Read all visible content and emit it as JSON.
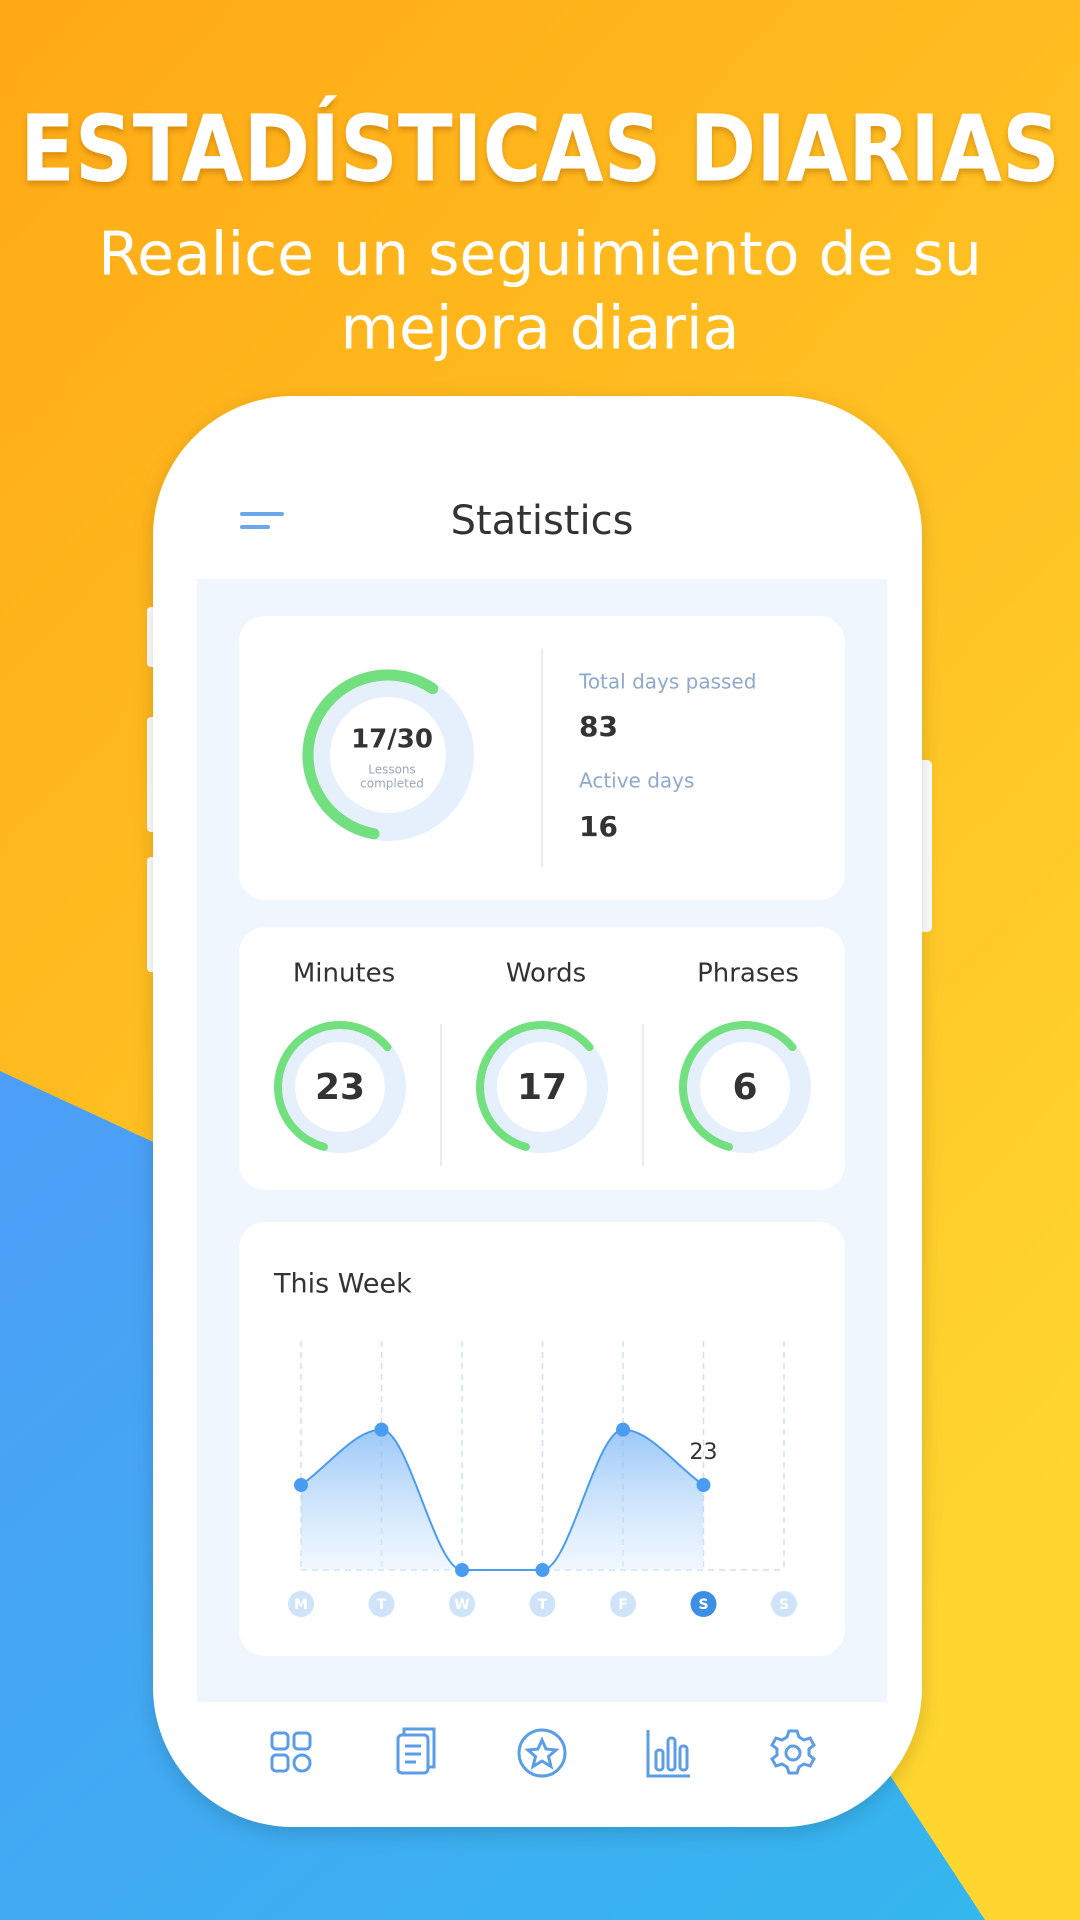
{
  "header": {
    "title": "ESTADÍSTICAS DIARIAS",
    "subtitle": [
      "Realice un seguimiento de su",
      "mejora diaria"
    ]
  },
  "app": {
    "title": "Statistics"
  },
  "lessons": {
    "value": 17,
    "total": 30,
    "value_label": "17/30",
    "caption": [
      "Lessons",
      "completed"
    ]
  },
  "summary": [
    {
      "label": "Total days passed",
      "value": 83
    },
    {
      "label": "Active days",
      "value": 16
    }
  ],
  "counters": [
    {
      "label": "Minutes",
      "value": 23
    },
    {
      "label": "Words",
      "value": 17
    },
    {
      "label": "Phrases",
      "value": 6
    }
  ],
  "chart_data": {
    "type": "area",
    "title": "This Week",
    "categories": [
      "M",
      "T",
      "W",
      "T",
      "F",
      "S",
      "S"
    ],
    "values": [
      23,
      38,
      0,
      0,
      38,
      23,
      null
    ],
    "value_labels": [
      null,
      null,
      null,
      null,
      null,
      "23",
      null
    ],
    "highlight_index": 5,
    "color": "#4a9cf0",
    "ylim": [
      0,
      62
    ]
  }
}
